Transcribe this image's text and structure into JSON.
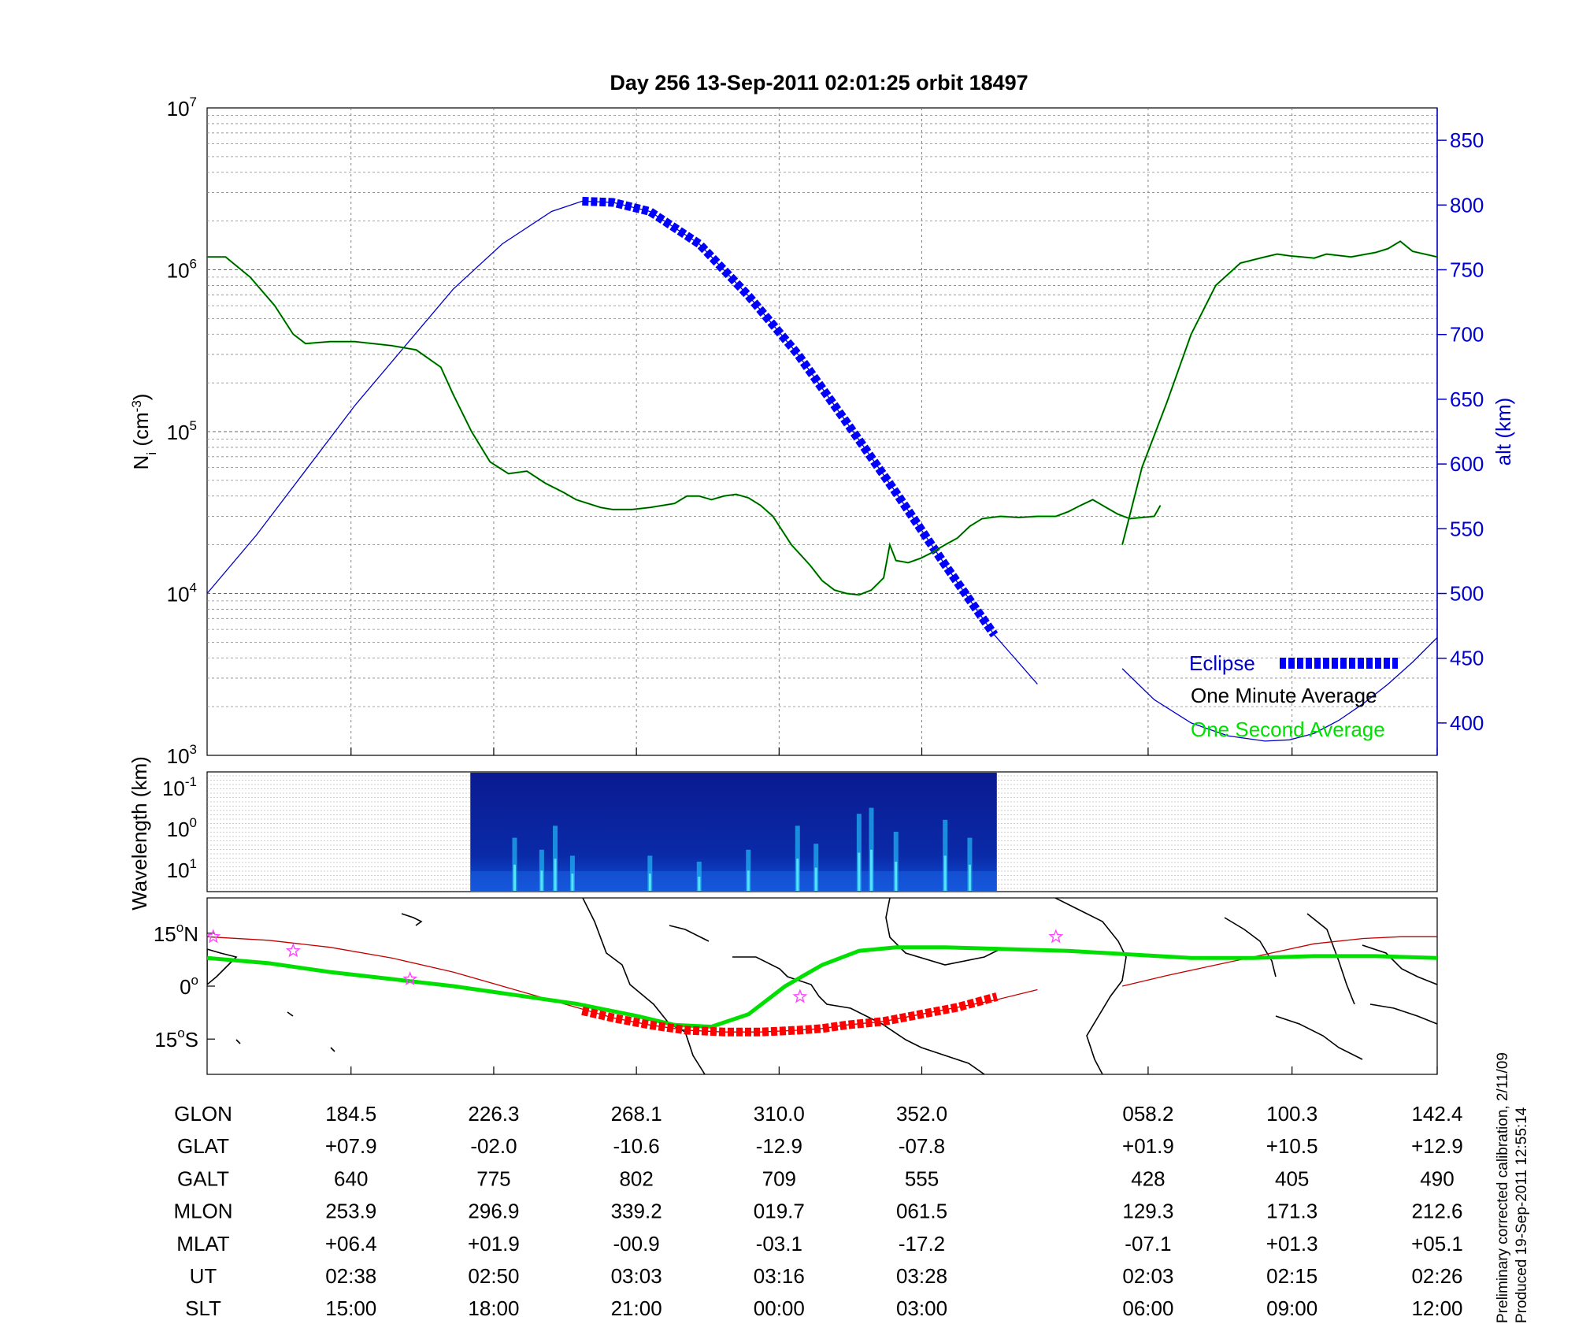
{
  "title": "Day 256  13-Sep-2011 02:01:25   orbit 18497",
  "colors": {
    "density_green": "#00c800",
    "density_dark": "#003300",
    "altitude_blue": "#0000c8",
    "eclipse_blue": "#0000ff",
    "track_green": "#00e000",
    "track_red": "#c00000",
    "eclipse_red": "#ff0000",
    "star_magenta": "#ff44ff"
  },
  "chart_data": [
    {
      "type": "line",
      "panel": "density",
      "ylabel_left": "Ni (cm-3)",
      "ylabel_right": "alt (km)",
      "yscale": "log",
      "ylim": [
        1000,
        10000000
      ],
      "ylim_right": [
        375,
        875
      ],
      "left_ticks": [
        {
          "base": "10",
          "exp": "7"
        },
        {
          "base": "10",
          "exp": "6"
        },
        {
          "base": "10",
          "exp": "5"
        },
        {
          "base": "10",
          "exp": "4"
        },
        {
          "base": "10",
          "exp": "3"
        }
      ],
      "right_ticks": [
        "850",
        "800",
        "750",
        "700",
        "650",
        "600",
        "550",
        "500",
        "450",
        "400"
      ],
      "grid": true,
      "legend": {
        "position": "bottom-right",
        "eclipse": "Eclipse",
        "one_minute": "One Minute Average",
        "one_second": "One Second Average"
      },
      "x_fraction_span": [
        0,
        1
      ],
      "density_segment_1": {
        "x": [
          0.0,
          0.015,
          0.035,
          0.055,
          0.07,
          0.08,
          0.1,
          0.12,
          0.15,
          0.17,
          0.19,
          0.2,
          0.215,
          0.23,
          0.245,
          0.26,
          0.275,
          0.29,
          0.3,
          0.32,
          0.33,
          0.345,
          0.36,
          0.38,
          0.39,
          0.4,
          0.41,
          0.42,
          0.43,
          0.44,
          0.45,
          0.46,
          0.475,
          0.49,
          0.5,
          0.51,
          0.52,
          0.53,
          0.54,
          0.55,
          0.555,
          0.56,
          0.57,
          0.58,
          0.59,
          0.6,
          0.61,
          0.62,
          0.63,
          0.645,
          0.66,
          0.675,
          0.69,
          0.7,
          0.71,
          0.72,
          0.74,
          0.75,
          0.76,
          0.77,
          0.775
        ],
        "y": [
          1200000,
          1200000,
          900000,
          600000,
          400000,
          350000,
          360000,
          360000,
          340000,
          320000,
          250000,
          170000,
          100000,
          65000,
          55000,
          57000,
          48000,
          42000,
          38000,
          34000,
          33000,
          33000,
          34000,
          36000,
          40000,
          40000,
          38000,
          40000,
          41000,
          39000,
          35000,
          30000,
          20000,
          15000,
          12000,
          10500,
          10000,
          9800,
          10500,
          12500,
          20000,
          16000,
          15500,
          16500,
          18000,
          20000,
          22000,
          26000,
          29000,
          30000,
          29500,
          30000,
          30000,
          32000,
          35000,
          38000,
          31000,
          29000,
          29500,
          30000,
          35000
        ]
      },
      "density_segment_2": {
        "x": [
          0.744,
          0.76,
          0.78,
          0.8,
          0.82,
          0.84,
          0.86,
          0.87,
          0.88,
          0.89,
          0.9,
          0.91,
          0.93,
          0.95,
          0.96,
          0.97,
          0.98,
          1.0
        ],
        "y": [
          20000,
          60000,
          150000,
          400000,
          800000,
          1100000,
          1200000,
          1250000,
          1220000,
          1200000,
          1180000,
          1250000,
          1200000,
          1280000,
          1350000,
          1500000,
          1300000,
          1200000
        ]
      },
      "altitude_segment_1": {
        "x": [
          0.0,
          0.04,
          0.08,
          0.12,
          0.16,
          0.2,
          0.24,
          0.28,
          0.305,
          0.33,
          0.36,
          0.4,
          0.44,
          0.48,
          0.52,
          0.56,
          0.6,
          0.64,
          0.675
        ],
        "y": [
          500,
          545,
          595,
          645,
          690,
          735,
          770,
          795,
          803,
          802,
          795,
          770,
          730,
          685,
          632,
          578,
          522,
          468,
          430
        ]
      },
      "altitude_segment_2": {
        "x": [
          0.744,
          0.77,
          0.8,
          0.83,
          0.86,
          0.88,
          0.9,
          0.92,
          0.94,
          0.96,
          0.98,
          1.0
        ],
        "y": [
          442,
          418,
          400,
          390,
          386,
          387,
          392,
          402,
          415,
          430,
          447,
          466
        ]
      },
      "eclipse_segment": {
        "x": [
          0.305,
          0.33,
          0.36,
          0.4,
          0.44,
          0.48,
          0.52,
          0.56,
          0.6,
          0.64
        ],
        "y": [
          803,
          802,
          795,
          770,
          730,
          685,
          632,
          578,
          522,
          468
        ]
      },
      "x_major_grid": [
        0.117,
        0.233,
        0.349,
        0.465,
        0.581,
        0.765,
        0.882,
        1.0
      ]
    },
    {
      "type": "heatmap",
      "panel": "spectrogram",
      "ylabel": "Wavelength (km)",
      "yticks": [
        {
          "base": "10",
          "exp": "-1"
        },
        {
          "base": "10",
          "exp": "0"
        },
        {
          "base": "10",
          "exp": "1"
        }
      ],
      "x_fraction_span": [
        0.214,
        0.642
      ],
      "spikes": [
        {
          "x": 0.25,
          "h": 0.45
        },
        {
          "x": 0.272,
          "h": 0.35
        },
        {
          "x": 0.283,
          "h": 0.55
        },
        {
          "x": 0.297,
          "h": 0.3
        },
        {
          "x": 0.36,
          "h": 0.3
        },
        {
          "x": 0.4,
          "h": 0.25
        },
        {
          "x": 0.44,
          "h": 0.35
        },
        {
          "x": 0.48,
          "h": 0.55
        },
        {
          "x": 0.495,
          "h": 0.4
        },
        {
          "x": 0.53,
          "h": 0.65
        },
        {
          "x": 0.54,
          "h": 0.7
        },
        {
          "x": 0.56,
          "h": 0.5
        },
        {
          "x": 0.6,
          "h": 0.6
        },
        {
          "x": 0.62,
          "h": 0.45
        }
      ]
    },
    {
      "type": "line",
      "panel": "map",
      "yticks": [
        {
          "deg": "15",
          "unit": "o",
          "hemi": "N"
        },
        {
          "deg": "0",
          "unit": "o",
          "hemi": ""
        },
        {
          "deg": "15",
          "unit": "o",
          "hemi": "S"
        }
      ],
      "ylim": [
        -25,
        25
      ],
      "magnetic_equator": {
        "x": [
          0.0,
          0.05,
          0.1,
          0.15,
          0.2,
          0.25,
          0.3,
          0.35,
          0.38,
          0.41,
          0.44,
          0.47,
          0.5,
          0.53,
          0.56,
          0.6,
          0.65,
          0.7,
          0.75,
          0.8,
          0.85,
          0.9,
          0.95,
          1.0
        ],
        "y": [
          8,
          6.5,
          4,
          2,
          0,
          -2.5,
          -5,
          -8.5,
          -11,
          -11.5,
          -8,
          0,
          6,
          10,
          11,
          11,
          10.5,
          10,
          9,
          8,
          8,
          8.5,
          8.5,
          8
        ]
      },
      "track_segment_1": {
        "x": [
          0.0,
          0.05,
          0.1,
          0.15,
          0.2,
          0.25,
          0.3,
          0.33,
          0.36,
          0.39,
          0.42,
          0.45,
          0.48,
          0.5,
          0.52,
          0.55,
          0.58,
          0.61,
          0.64,
          0.675
        ],
        "y": [
          14,
          13,
          11,
          8,
          4,
          -1,
          -6,
          -9,
          -11,
          -12.5,
          -13,
          -13,
          -12.5,
          -12,
          -11,
          -10,
          -8,
          -6,
          -4,
          -1
        ]
      },
      "track_segment_2": {
        "x": [
          0.744,
          0.78,
          0.82,
          0.86,
          0.9,
          0.94,
          0.97,
          1.0
        ],
        "y": [
          0,
          3,
          6,
          9,
          12,
          13.5,
          14,
          14
        ]
      },
      "eclipse_track": {
        "x": [
          0.305,
          0.33,
          0.36,
          0.39,
          0.42,
          0.45,
          0.48,
          0.5,
          0.52,
          0.55,
          0.58,
          0.61,
          0.642
        ],
        "y": [
          -7,
          -9,
          -11,
          -12.5,
          -13,
          -13,
          -12.5,
          -12,
          -11,
          -10,
          -8,
          -6,
          -3
        ]
      },
      "stars": [
        {
          "x": 0.005,
          "y": 14
        },
        {
          "x": 0.07,
          "y": 10
        },
        {
          "x": 0.165,
          "y": 2
        },
        {
          "x": 0.482,
          "y": -3
        },
        {
          "x": 0.69,
          "y": 14
        }
      ]
    }
  ],
  "table": {
    "columns_x": [
      0.117,
      0.233,
      0.349,
      0.465,
      0.581,
      0.765,
      0.882,
      1.0
    ],
    "rows": [
      {
        "label": "GLON",
        "values": [
          "184.5",
          "226.3",
          "268.1",
          "310.0",
          "352.0",
          "058.2",
          "100.3",
          "142.4"
        ]
      },
      {
        "label": "GLAT",
        "values": [
          "+07.9",
          "-02.0",
          "-10.6",
          "-12.9",
          "-07.8",
          "+01.9",
          "+10.5",
          "+12.9"
        ]
      },
      {
        "label": "GALT",
        "values": [
          "640",
          "775",
          "802",
          "709",
          "555",
          "428",
          "405",
          "490"
        ]
      },
      {
        "label": "MLON",
        "values": [
          "253.9",
          "296.9",
          "339.2",
          "019.7",
          "061.5",
          "129.3",
          "171.3",
          "212.6"
        ]
      },
      {
        "label": "MLAT",
        "values": [
          "+06.4",
          "+01.9",
          "-00.9",
          "-03.1",
          "-17.2",
          "-07.1",
          "+01.3",
          "+05.1"
        ]
      },
      {
        "label": "UT",
        "values": [
          "02:38",
          "02:50",
          "03:03",
          "03:16",
          "03:28",
          "02:03",
          "02:15",
          "02:26"
        ]
      },
      {
        "label": "SLT",
        "values": [
          "15:00",
          "18:00",
          "21:00",
          "00:00",
          "03:00",
          "06:00",
          "09:00",
          "12:00"
        ]
      }
    ]
  },
  "side_notes": {
    "line1": "Preliminary corrected calibration, 2/11/09",
    "line2": "Produced 19-Sep-2011 12:55:14"
  }
}
